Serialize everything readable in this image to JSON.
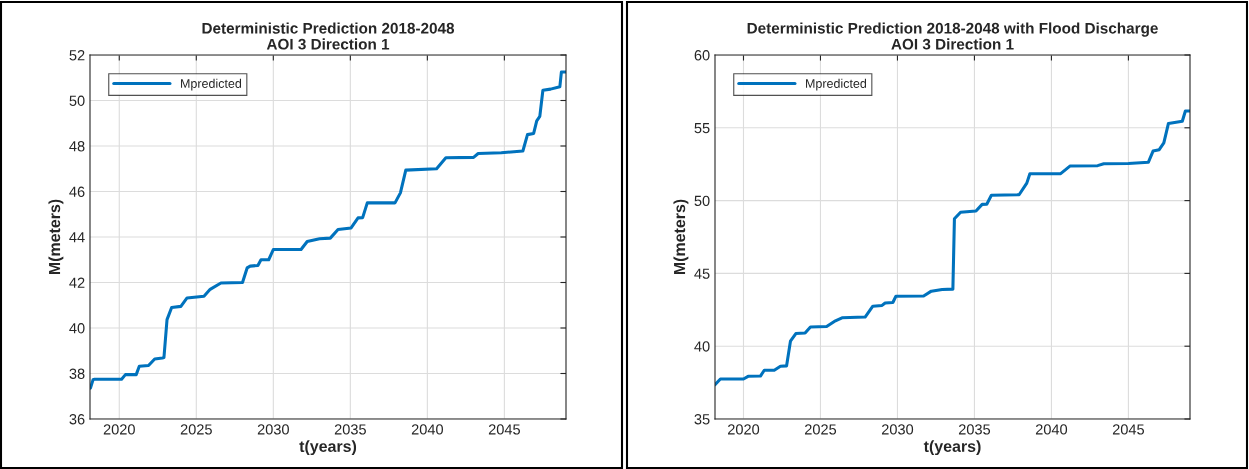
{
  "chart_data": [
    {
      "type": "line",
      "title": "Deterministic Prediction 2018-2048",
      "subtitle": "AOI 3 Direction 1",
      "xlabel": "t(years)",
      "ylabel": "M(meters)",
      "x": [
        2018.13,
        2018.3,
        2018.4,
        2020.15,
        2020.4,
        2021.1,
        2021.3,
        2021.9,
        2022.3,
        2022.8,
        2022.9,
        2023.1,
        2023.4,
        2024.0,
        2024.4,
        2025.5,
        2025.9,
        2026.6,
        2028.0,
        2028.3,
        2028.5,
        2029.0,
        2029.2,
        2029.7,
        2030.0,
        2031.8,
        2032.2,
        2033.0,
        2033.7,
        2034.2,
        2035.05,
        2035.5,
        2035.8,
        2036.1,
        2037.9,
        2038.25,
        2038.6,
        2040.6,
        2041.2,
        2043.0,
        2043.3,
        2044.8,
        2046.2,
        2046.5,
        2046.9,
        2047.1,
        2047.3,
        2047.5,
        2048.0,
        2048.6,
        2048.7,
        2049.0
      ],
      "series": [
        {
          "name": "Mpredicted",
          "color": "#0072bd",
          "values": [
            37.36,
            37.73,
            37.75,
            37.75,
            37.95,
            37.95,
            38.32,
            38.35,
            38.64,
            38.68,
            38.7,
            40.37,
            40.9,
            40.95,
            41.32,
            41.4,
            41.7,
            41.98,
            42.0,
            42.64,
            42.72,
            42.75,
            43.0,
            43.0,
            43.45,
            43.45,
            43.8,
            43.92,
            43.95,
            44.33,
            44.4,
            44.84,
            44.85,
            45.5,
            45.5,
            45.94,
            46.94,
            47.0,
            47.48,
            47.5,
            47.67,
            47.7,
            47.78,
            48.5,
            48.55,
            49.1,
            49.3,
            50.45,
            50.5,
            50.6,
            51.25,
            51.25
          ]
        }
      ],
      "xlim": [
        2018.1,
        2049
      ],
      "xticks": [
        2020,
        2025,
        2030,
        2035,
        2040,
        2045
      ],
      "ylim": [
        36,
        52
      ],
      "yticks": [
        36,
        38,
        40,
        42,
        44,
        46,
        48,
        50,
        52
      ],
      "grid": true,
      "legend": "top left"
    },
    {
      "type": "line",
      "title": "Deterministic Prediction 2018-2048 with Flood Discharge",
      "subtitle": "AOI 3 Direction 1",
      "xlabel": "t(years)",
      "ylabel": "M(meters)",
      "x": [
        2018.15,
        2018.5,
        2020.0,
        2020.3,
        2021.1,
        2021.35,
        2022.0,
        2022.4,
        2022.8,
        2023.05,
        2023.4,
        2024.0,
        2024.35,
        2025.4,
        2025.9,
        2026.4,
        2027.9,
        2028.4,
        2029.0,
        2029.2,
        2029.7,
        2029.9,
        2031.7,
        2032.2,
        2032.9,
        2033.6,
        2033.7,
        2034.1,
        2035.1,
        2035.5,
        2035.8,
        2036.1,
        2037.9,
        2038.4,
        2038.6,
        2040.6,
        2041.2,
        2043.0,
        2043.4,
        2045.0,
        2046.3,
        2046.6,
        2047.0,
        2047.3,
        2047.6,
        2048.5,
        2048.7,
        2049.0
      ],
      "series": [
        {
          "name": "Mpredicted",
          "color": "#0072bd",
          "values": [
            37.36,
            37.75,
            37.75,
            37.93,
            37.95,
            38.35,
            38.35,
            38.62,
            38.65,
            40.34,
            40.87,
            40.9,
            41.32,
            41.35,
            41.7,
            41.95,
            42.0,
            42.75,
            42.8,
            42.97,
            43.0,
            43.43,
            43.45,
            43.78,
            43.9,
            43.92,
            48.75,
            49.2,
            49.28,
            49.74,
            49.75,
            50.37,
            50.4,
            51.2,
            51.84,
            51.85,
            52.37,
            52.4,
            52.53,
            52.55,
            52.64,
            53.4,
            53.5,
            53.97,
            55.3,
            55.45,
            56.15,
            56.15
          ]
        }
      ],
      "xlim": [
        2018.15,
        2049
      ],
      "xticks": [
        2020,
        2025,
        2030,
        2035,
        2040,
        2045
      ],
      "ylim": [
        35,
        60
      ],
      "yticks": [
        35,
        40,
        45,
        50,
        55,
        60
      ],
      "grid": true,
      "legend": "top left"
    }
  ]
}
